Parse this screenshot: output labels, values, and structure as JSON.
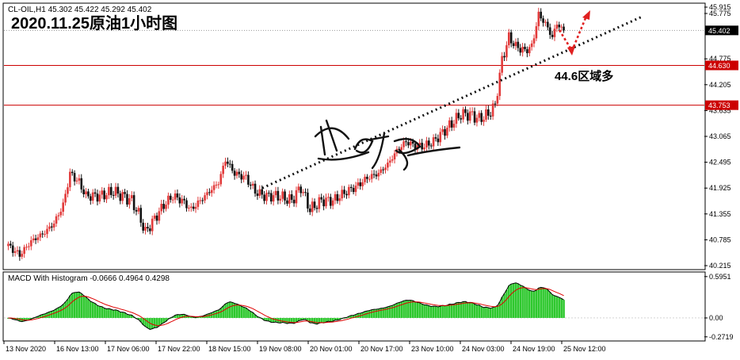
{
  "header": {
    "symbol_info": "CL-OIL,H1  45.302 45.422 45.292 45.402",
    "chart_title": "2020.11.25原油1小时图",
    "annotation": "44.6区域多"
  },
  "macd_header": "MACD With Histogram -0.0666 0.4964 0.4298",
  "chart_data": {
    "type": "candlestick",
    "title": "2020.11.25原油1小时图",
    "symbol": "CL-OIL",
    "timeframe": "H1",
    "ohlc_header": {
      "open": 45.302,
      "high": 45.422,
      "low": 45.292,
      "close": 45.402
    },
    "price_ylim": [
      40.215,
      45.915
    ],
    "price_ticks": [
      "45.915",
      "45.775",
      "44.775",
      "44.205",
      "43.635",
      "43.065",
      "42.495",
      "41.925",
      "41.355",
      "40.785",
      "40.215"
    ],
    "current_price": "45.402",
    "levels": [
      {
        "label": "44.630",
        "value": 44.63,
        "color": "#cc0000"
      },
      {
        "label": "43.753",
        "value": 43.753,
        "color": "#cc0000"
      }
    ],
    "x_ticks": [
      "13 Nov 2020",
      "16 Nov 13:00",
      "17 Nov 06:00",
      "17 Nov 22:00",
      "18 Nov 15:00",
      "19 Nov 08:00",
      "20 Nov 01:00",
      "20 Nov 17:00",
      "23 Nov 10:00",
      "24 Nov 03:00",
      "24 Nov 19:00",
      "25 Nov 12:00"
    ],
    "anchors": [
      [
        0,
        40.65
      ],
      [
        5,
        40.45
      ],
      [
        10,
        40.75
      ],
      [
        16,
        40.95
      ],
      [
        20,
        41.15
      ],
      [
        24,
        41.55
      ],
      [
        27,
        42.25
      ],
      [
        31,
        42.05
      ],
      [
        34,
        41.75
      ],
      [
        40,
        41.75
      ],
      [
        46,
        41.85
      ],
      [
        50,
        41.75
      ],
      [
        54,
        41.65
      ],
      [
        57,
        41.35
      ],
      [
        60,
        40.95
      ],
      [
        64,
        41.25
      ],
      [
        68,
        41.55
      ],
      [
        72,
        41.75
      ],
      [
        76,
        41.65
      ],
      [
        80,
        41.45
      ],
      [
        86,
        41.75
      ],
      [
        92,
        42.05
      ],
      [
        95,
        42.55
      ],
      [
        99,
        42.25
      ],
      [
        104,
        42.15
      ],
      [
        108,
        41.85
      ],
      [
        112,
        41.75
      ],
      [
        118,
        41.75
      ],
      [
        124,
        41.65
      ],
      [
        128,
        41.95
      ],
      [
        132,
        41.45
      ],
      [
        137,
        41.65
      ],
      [
        142,
        41.65
      ],
      [
        148,
        41.85
      ],
      [
        152,
        41.95
      ],
      [
        157,
        42.15
      ],
      [
        162,
        42.25
      ],
      [
        166,
        42.45
      ],
      [
        170,
        42.75
      ],
      [
        174,
        42.95
      ],
      [
        178,
        42.85
      ],
      [
        182,
        42.85
      ],
      [
        186,
        42.95
      ],
      [
        190,
        43.15
      ],
      [
        194,
        43.35
      ],
      [
        198,
        43.55
      ],
      [
        202,
        43.55
      ],
      [
        206,
        43.45
      ],
      [
        210,
        43.55
      ],
      [
        213,
        43.75
      ],
      [
        216,
        44.75
      ],
      [
        219,
        45.25
      ],
      [
        222,
        45.05
      ],
      [
        226,
        44.95
      ],
      [
        229,
        45.05
      ],
      [
        232,
        45.75
      ],
      [
        235,
        45.55
      ],
      [
        238,
        45.25
      ],
      [
        240,
        45.55
      ],
      [
        243,
        45.4
      ]
    ],
    "macd": {
      "ylim": [
        -0.32,
        0.65
      ],
      "ticks": [
        "0.5951",
        "0.00",
        "-0.2719"
      ]
    },
    "trendline": {
      "from": [
        "19 Nov 08:00",
        41.925
      ],
      "to": [
        "25 Nov 12:00",
        45.1
      ]
    }
  },
  "colors": {
    "bull": "#e23a3a",
    "bear": "#111111",
    "level": "#cc0000",
    "histogram": "#2ec82e",
    "signal": "#e00000",
    "macd_line": "#000000",
    "forecast_arrow": "#e02020"
  }
}
